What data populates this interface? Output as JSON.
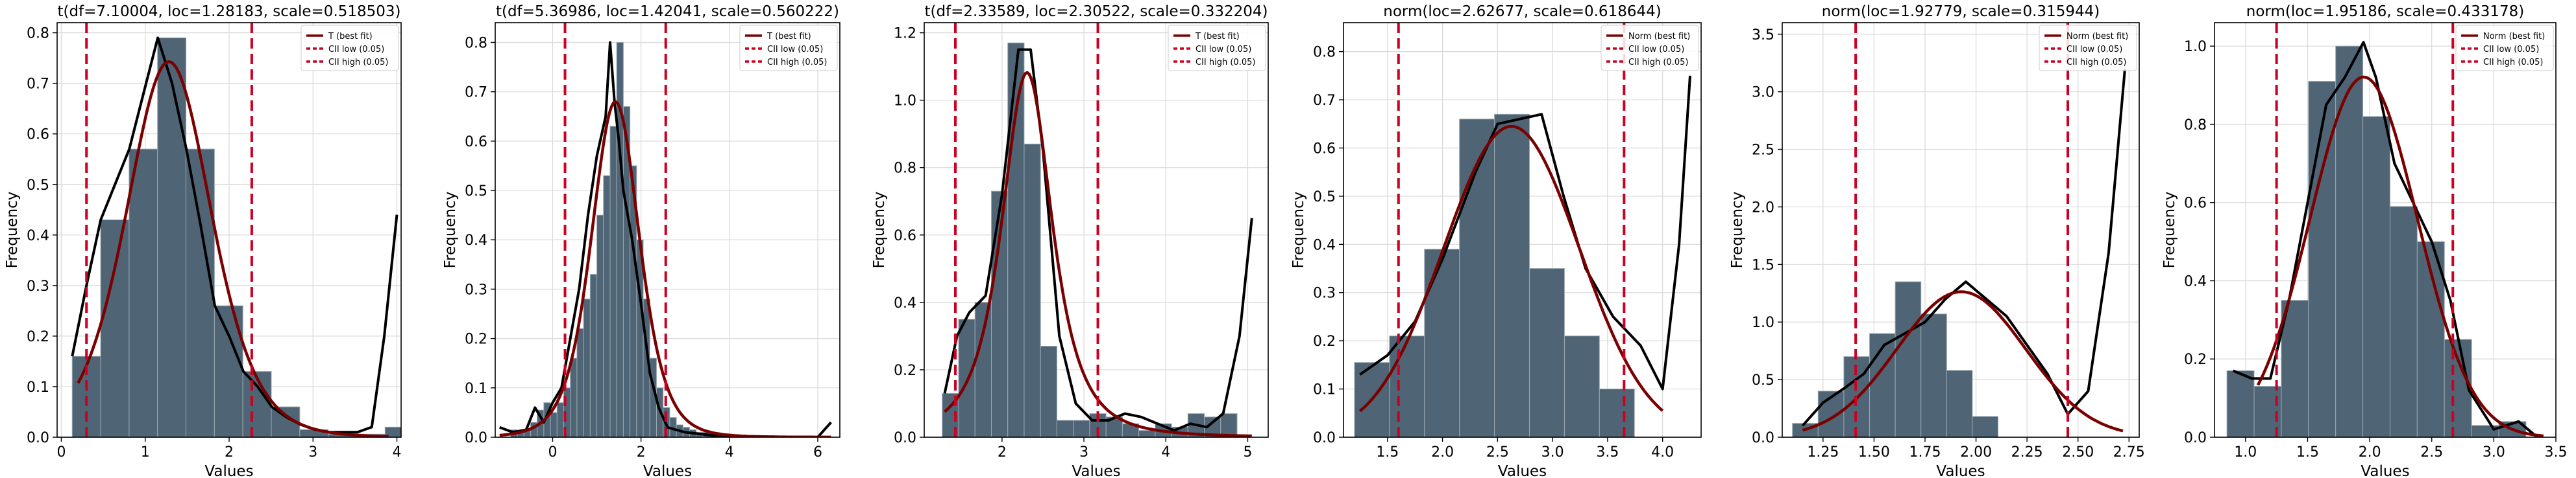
{
  "chart_data": [
    {
      "type": "histogram",
      "title": "t(df=7.10004, loc=1.28183, scale=0.518503)",
      "xlabel": "Values",
      "ylabel": "Frequency",
      "xlim": [
        -0.05,
        4.05
      ],
      "ylim": [
        0,
        0.82
      ],
      "xticks": [
        0,
        1,
        2,
        3,
        4
      ],
      "xtick_labels": [
        "0",
        "1",
        "2",
        "3",
        "4"
      ],
      "yticks": [
        0,
        0.1,
        0.2,
        0.3,
        0.4,
        0.5,
        0.6,
        0.7,
        0.8
      ],
      "ytick_labels": [
        "0.0",
        "0.1",
        "0.2",
        "0.3",
        "0.4",
        "0.5",
        "0.6",
        "0.7",
        "0.8"
      ],
      "bins": {
        "start": 0.13,
        "width": 0.339,
        "values": [
          0.16,
          0.43,
          0.57,
          0.79,
          0.57,
          0.26,
          0.13,
          0.06,
          0.015,
          0.006,
          0.006,
          0.02
        ]
      },
      "kde": {
        "x": [
          0.13,
          0.3,
          0.47,
          0.64,
          0.81,
          0.98,
          1.15,
          1.32,
          1.49,
          1.66,
          1.83,
          2.0,
          2.17,
          2.34,
          2.51,
          2.68,
          2.85,
          3.02,
          3.19,
          3.36,
          3.53,
          3.7,
          3.85,
          4.0
        ],
        "y": [
          0.16,
          0.3,
          0.43,
          0.5,
          0.57,
          0.68,
          0.79,
          0.7,
          0.57,
          0.42,
          0.26,
          0.2,
          0.13,
          0.1,
          0.06,
          0.04,
          0.025,
          0.015,
          0.01,
          0.01,
          0.01,
          0.02,
          0.2,
          0.44
        ]
      },
      "fit": {
        "dist": "t",
        "df": 7.10004,
        "loc": 1.28183,
        "scale": 0.518503,
        "x_range": [
          0.2,
          3.9
        ]
      },
      "ci_low": 0.3,
      "ci_high": 2.27,
      "legend": [
        "T (best fit)",
        "CII low (0.05)",
        "CII high (0.05)"
      ]
    },
    {
      "type": "histogram",
      "title": "t(df=5.36986, loc=1.42041, scale=0.560222)",
      "xlabel": "Values",
      "ylabel": "Frequency",
      "xlim": [
        -1.3,
        6.5
      ],
      "ylim": [
        0,
        0.84
      ],
      "xticks": [
        0,
        2,
        4,
        6
      ],
      "xtick_labels": [
        "0",
        "2",
        "4",
        "6"
      ],
      "yticks": [
        0,
        0.1,
        0.2,
        0.3,
        0.4,
        0.5,
        0.6,
        0.7,
        0.8
      ],
      "ytick_labels": [
        "0.0",
        "0.1",
        "0.2",
        "0.3",
        "0.4",
        "0.5",
        "0.6",
        "0.7",
        "0.8"
      ],
      "bins": {
        "start": -0.95,
        "width": 0.15,
        "values": [
          0.015,
          0.01,
          0.015,
          0.03,
          0.055,
          0.07,
          0.05,
          0.07,
          0.1,
          0.16,
          0.22,
          0.28,
          0.33,
          0.45,
          0.53,
          0.63,
          0.8,
          0.67,
          0.55,
          0.4,
          0.28,
          0.16,
          0.1,
          0.06,
          0.04,
          0.025,
          0.02,
          0.015,
          0.01,
          0.01,
          0.008,
          0.006
        ]
      },
      "kde": {
        "x": [
          -1.2,
          -0.9,
          -0.6,
          -0.4,
          -0.2,
          0.0,
          0.2,
          0.4,
          0.6,
          0.8,
          1.0,
          1.2,
          1.3,
          1.4,
          1.5,
          1.6,
          1.8,
          2.0,
          2.2,
          2.4,
          2.6,
          3.0,
          3.5,
          4.0,
          5.0,
          6.0,
          6.3
        ],
        "y": [
          0.02,
          0.01,
          0.015,
          0.06,
          0.03,
          0.07,
          0.1,
          0.2,
          0.3,
          0.45,
          0.57,
          0.65,
          0.8,
          0.68,
          0.6,
          0.5,
          0.4,
          0.27,
          0.13,
          0.06,
          0.02,
          0.01,
          0.005,
          0.0,
          0.0,
          0.0,
          0.03
        ]
      },
      "fit": {
        "dist": "t",
        "df": 5.36986,
        "loc": 1.42041,
        "scale": 0.560222,
        "x_range": [
          -1.2,
          6.3
        ]
      },
      "ci_low": 0.28,
      "ci_high": 2.56,
      "legend": [
        "T (best fit)",
        "CII low (0.05)",
        "CII high (0.05)"
      ]
    },
    {
      "type": "histogram",
      "title": "t(df=2.33589, loc=2.30522, scale=0.332204)",
      "xlabel": "Values",
      "ylabel": "Frequency",
      "xlim": [
        1.05,
        5.25
      ],
      "ylim": [
        0,
        1.23
      ],
      "xticks": [
        2,
        3,
        4,
        5
      ],
      "xtick_labels": [
        "2",
        "3",
        "4",
        "5"
      ],
      "yticks": [
        0,
        0.2,
        0.4,
        0.6,
        0.8,
        1.0,
        1.2
      ],
      "ytick_labels": [
        "0.0",
        "0.2",
        "0.4",
        "0.6",
        "0.8",
        "1.0",
        "1.2"
      ],
      "bins": {
        "start": 1.27,
        "width": 0.2,
        "values": [
          0.13,
          0.35,
          0.4,
          0.73,
          1.17,
          0.87,
          0.27,
          0.05,
          0.05,
          0.07,
          0.06,
          0.04,
          0.02,
          0.04,
          0.03,
          0.07,
          0.06,
          0.07
        ]
      },
      "kde": {
        "x": [
          1.3,
          1.45,
          1.6,
          1.8,
          2.0,
          2.2,
          2.35,
          2.5,
          2.7,
          2.9,
          3.1,
          3.3,
          3.5,
          3.7,
          3.9,
          4.1,
          4.3,
          4.5,
          4.7,
          4.9,
          5.05
        ],
        "y": [
          0.13,
          0.3,
          0.37,
          0.42,
          0.72,
          1.15,
          1.15,
          0.85,
          0.3,
          0.1,
          0.05,
          0.05,
          0.07,
          0.06,
          0.04,
          0.02,
          0.04,
          0.03,
          0.07,
          0.3,
          0.65
        ]
      },
      "fit": {
        "dist": "t",
        "df": 2.33589,
        "loc": 2.30522,
        "scale": 0.332204,
        "x_range": [
          1.3,
          5.05
        ]
      },
      "ci_low": 1.43,
      "ci_high": 3.17,
      "legend": [
        "T (best fit)",
        "CII low (0.05)",
        "CII high (0.05)"
      ]
    },
    {
      "type": "histogram",
      "title": "norm(loc=2.62677, scale=0.618644)",
      "xlabel": "Values",
      "ylabel": "Frequency",
      "xlim": [
        1.1,
        4.35
      ],
      "ylim": [
        0,
        0.86
      ],
      "xticks": [
        1.5,
        2.0,
        2.5,
        3.0,
        3.5,
        4.0
      ],
      "xtick_labels": [
        "1.5",
        "2.0",
        "2.5",
        "3.0",
        "3.5",
        "4.0"
      ],
      "yticks": [
        0,
        0.1,
        0.2,
        0.3,
        0.4,
        0.5,
        0.6,
        0.7,
        0.8
      ],
      "ytick_labels": [
        "0.0",
        "0.1",
        "0.2",
        "0.3",
        "0.4",
        "0.5",
        "0.6",
        "0.7",
        "0.8"
      ],
      "bins": {
        "start": 1.2,
        "width": 0.318,
        "values": [
          0.155,
          0.21,
          0.39,
          0.66,
          0.67,
          0.35,
          0.21,
          0.1
        ]
      },
      "kde": {
        "x": [
          1.25,
          1.5,
          1.75,
          2.0,
          2.3,
          2.5,
          2.7,
          2.9,
          3.1,
          3.3,
          3.55,
          3.8,
          4.0,
          4.15,
          4.25
        ],
        "y": [
          0.13,
          0.17,
          0.24,
          0.37,
          0.55,
          0.65,
          0.66,
          0.67,
          0.5,
          0.35,
          0.25,
          0.19,
          0.1,
          0.4,
          0.75
        ]
      },
      "fit": {
        "dist": "norm",
        "loc": 2.62677,
        "scale": 0.618644,
        "x_range": [
          1.25,
          4.0
        ]
      },
      "ci_low": 1.6,
      "ci_high": 3.65,
      "legend": [
        "Norm (best fit)",
        "CII low (0.05)",
        "CII high (0.05)"
      ]
    },
    {
      "type": "histogram",
      "title": "norm(loc=1.92779, scale=0.315944)",
      "xlabel": "Values",
      "ylabel": "Frequency",
      "xlim": [
        1.05,
        2.8
      ],
      "ylim": [
        0,
        3.6
      ],
      "xticks": [
        1.25,
        1.5,
        1.75,
        2.0,
        2.25,
        2.5,
        2.75
      ],
      "xtick_labels": [
        "1.25",
        "1.50",
        "1.75",
        "2.00",
        "2.25",
        "2.50",
        "2.75"
      ],
      "yticks": [
        0,
        0.5,
        1.0,
        1.5,
        2.0,
        2.5,
        3.0,
        3.5
      ],
      "ytick_labels": [
        "0.0",
        "0.5",
        "1.0",
        "1.5",
        "2.0",
        "2.5",
        "3.0",
        "3.5"
      ],
      "bins": {
        "start": 1.1,
        "width": 0.126,
        "values": [
          0.12,
          0.4,
          0.7,
          0.9,
          1.35,
          1.07,
          0.58,
          0.18
        ]
      },
      "kde": {
        "x": [
          1.15,
          1.25,
          1.35,
          1.45,
          1.55,
          1.65,
          1.75,
          1.85,
          1.95,
          2.05,
          2.15,
          2.25,
          2.35,
          2.45,
          2.55,
          2.65,
          2.73
        ],
        "y": [
          0.1,
          0.3,
          0.42,
          0.55,
          0.8,
          0.9,
          1.0,
          1.2,
          1.35,
          1.2,
          1.05,
          0.8,
          0.55,
          0.2,
          0.4,
          1.6,
          3.2
        ]
      },
      "fit": {
        "dist": "norm",
        "loc": 1.92779,
        "scale": 0.315944,
        "x_range": [
          1.15,
          2.72
        ]
      },
      "ci_low": 1.41,
      "ci_high": 2.45,
      "legend": [
        "Norm (best fit)",
        "CII low (0.05)",
        "CII high (0.05)"
      ]
    },
    {
      "type": "histogram",
      "title": "norm(loc=1.95186, scale=0.433178)",
      "xlabel": "Values",
      "ylabel": "Frequency",
      "xlim": [
        0.75,
        3.5
      ],
      "ylim": [
        0,
        1.06
      ],
      "xticks": [
        1.0,
        1.5,
        2.0,
        2.5,
        3.0,
        3.5
      ],
      "xtick_labels": [
        "1.0",
        "1.5",
        "2.0",
        "2.5",
        "3.0",
        "3.5"
      ],
      "yticks": [
        0,
        0.2,
        0.4,
        0.6,
        0.8,
        1.0
      ],
      "ytick_labels": [
        "0.0",
        "0.2",
        "0.4",
        "0.6",
        "0.8",
        "1.0"
      ],
      "bins": {
        "start": 0.85,
        "width": 0.219,
        "values": [
          0.17,
          0.13,
          0.35,
          0.91,
          1.0,
          0.82,
          0.59,
          0.5,
          0.25,
          0.03,
          0.04
        ]
      },
      "kde": {
        "x": [
          0.9,
          1.05,
          1.2,
          1.35,
          1.5,
          1.65,
          1.8,
          1.95,
          2.05,
          2.2,
          2.35,
          2.5,
          2.65,
          2.8,
          3.0,
          3.2,
          3.35
        ],
        "y": [
          0.17,
          0.15,
          0.15,
          0.35,
          0.6,
          0.85,
          0.92,
          1.01,
          0.92,
          0.7,
          0.6,
          0.5,
          0.35,
          0.12,
          0.02,
          0.04,
          0.0
        ]
      },
      "fit": {
        "dist": "norm",
        "loc": 1.95186,
        "scale": 0.433178,
        "x_range": [
          1.1,
          3.4
        ]
      },
      "ci_low": 1.25,
      "ci_high": 2.67,
      "legend": [
        "Norm (best fit)",
        "CII low (0.05)",
        "CII high (0.05)"
      ]
    }
  ],
  "colors": {
    "bar_fill": "#4f6576",
    "bar_edge": "#9aa8b2",
    "kde_line": "#000000",
    "fit_line": "#7b0000",
    "ci_line": "#cc0022",
    "grid": "#d9d9d9"
  }
}
